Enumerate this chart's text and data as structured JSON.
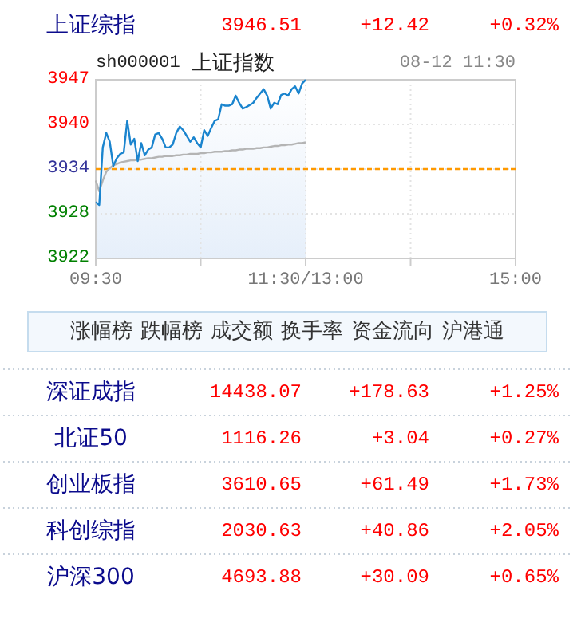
{
  "chart_data": [
    {
      "type": "other",
      "categories": [
        "上证综指"
      ],
      "cell_labels": [
        [
          "3946.51",
          "+12.42",
          "+0.32%"
        ]
      ]
    },
    {
      "type": "area",
      "title": "上证指数",
      "subtitle": "sh000001",
      "annotations": [
        "08-12 11:30"
      ],
      "categories": [
        "09:30",
        null,
        null,
        null,
        null,
        null,
        null,
        null,
        null,
        null,
        null,
        null,
        null,
        null,
        null,
        null,
        null,
        null,
        null,
        null,
        null,
        null,
        null,
        null,
        null,
        null,
        null,
        null,
        null,
        null,
        null,
        null,
        null,
        null,
        null,
        null,
        null,
        null,
        null,
        null,
        null,
        null,
        null,
        null,
        null,
        null,
        null,
        null,
        null,
        null,
        null,
        null,
        null,
        null,
        null,
        null,
        null,
        null,
        null,
        null,
        "11:30/13:00",
        null,
        null,
        null,
        null,
        null,
        null,
        null,
        null,
        null,
        null,
        null,
        null,
        null,
        null,
        null,
        null,
        null,
        null,
        null,
        null,
        null,
        null,
        null,
        null,
        null,
        null,
        null,
        null,
        null,
        null,
        null,
        null,
        null,
        null,
        null,
        null,
        null,
        null,
        null,
        null,
        null,
        null,
        null,
        null,
        null,
        null,
        null,
        null,
        null,
        null,
        null,
        null,
        null,
        null,
        null,
        null,
        null,
        null,
        null,
        "15:00"
      ],
      "ylim": [
        3921.67,
        3946.51
      ],
      "yticks": [
        {
          "value": 3921.67,
          "label": "3922"
        },
        {
          "value": 3927.88,
          "label": "3928"
        },
        {
          "value": 3934.09,
          "label": "3934"
        },
        {
          "value": 3940.3,
          "label": "3940"
        },
        {
          "value": 3946.51,
          "label": "3947"
        }
      ],
      "grid": true,
      "ref_lines": [
        {
          "axis": "y",
          "value": 3934.09,
          "color": "#ff9900",
          "line_style": "dashed"
        }
      ],
      "series": [
        {
          "type": "area",
          "color": "#1a84ce",
          "values": [
            3929.5,
            3929.1,
            3937.1,
            3939.1,
            3937.9,
            3934.5,
            3935.6,
            3936.2,
            3936.4,
            3940.8,
            3937.5,
            3938.3,
            3935.2,
            3937.7,
            3936.0,
            3936.8,
            3937.1,
            3938.9,
            3939.1,
            3938.3,
            3937.1,
            3937.1,
            3937.5,
            3939.1,
            3940.0,
            3939.5,
            3938.7,
            3937.9,
            3938.5,
            3937.7,
            3937.1,
            3939.5,
            3938.7,
            3939.8,
            3940.8,
            3941.0,
            3943.1,
            3942.9,
            3942.9,
            3943.1,
            3944.3,
            3943.3,
            3942.5,
            3942.7,
            3943.0,
            3943.3,
            3944.0,
            3944.6,
            3945.2,
            3944.3,
            3942.5,
            3943.3,
            3943.1,
            3944.4,
            3944.6,
            3944.3,
            3945.2,
            3945.6,
            3944.6,
            3946.0,
            3946.5,
            null,
            null,
            null,
            null,
            null,
            null,
            null,
            null,
            null,
            null,
            null,
            null,
            null,
            null,
            null,
            null,
            null,
            null,
            null,
            null,
            null,
            null,
            null,
            null,
            null,
            null,
            null,
            null,
            null,
            null,
            null,
            null,
            null,
            null,
            null,
            null,
            null,
            null,
            null,
            null,
            null,
            null,
            null,
            null,
            null,
            null,
            null,
            null,
            null,
            null,
            null,
            null,
            null,
            null,
            null,
            null,
            null,
            null,
            null,
            null
          ]
        },
        {
          "type": "line",
          "color": "#b4b4b4",
          "values": [
            3932.5,
            3931.0,
            3932.5,
            3933.7,
            3934.2,
            3934.6,
            3934.8,
            3935.0,
            3935.1,
            3935.2,
            3935.3,
            3935.3,
            3935.4,
            3935.4,
            3935.5,
            3935.6,
            3935.6,
            3935.7,
            3935.8,
            3935.8,
            3935.9,
            3935.9,
            3935.9,
            3936.0,
            3936.0,
            3936.1,
            3936.1,
            3936.2,
            3936.2,
            3936.2,
            3936.3,
            3936.3,
            3936.4,
            3936.4,
            3936.5,
            3936.5,
            3936.5,
            3936.6,
            3936.6,
            3936.7,
            3936.7,
            3936.8,
            3936.8,
            3936.9,
            3936.9,
            3936.9,
            3937.0,
            3937.0,
            3937.1,
            3937.1,
            3937.2,
            3937.3,
            3937.3,
            3937.4,
            3937.4,
            3937.5,
            3937.5,
            3937.6,
            3937.7,
            3937.7,
            3937.8,
            null,
            null,
            null,
            null,
            null,
            null,
            null,
            null,
            null,
            null,
            null,
            null,
            null,
            null,
            null,
            null,
            null,
            null,
            null,
            null,
            null,
            null,
            null,
            null,
            null,
            null,
            null,
            null,
            null,
            null,
            null,
            null,
            null,
            null,
            null,
            null,
            null,
            null,
            null,
            null,
            null,
            null,
            null,
            null,
            null,
            null,
            null,
            null,
            null,
            null,
            null,
            null,
            null,
            null,
            null,
            null,
            null,
            null,
            null,
            null
          ]
        }
      ]
    },
    {
      "type": "other",
      "annotations": [
        "涨幅榜",
        "跌幅榜",
        "成交额",
        "换手率",
        "资金流向",
        "沪港通"
      ],
      "categories": [
        "深证成指",
        "北证50",
        "创业板指",
        "科创综指",
        "沪深300"
      ],
      "cell_labels": [
        [
          "14438.07",
          "+178.63",
          "+1.25%"
        ],
        [
          "1116.26",
          "+3.04",
          "+0.27%"
        ],
        [
          "3610.65",
          "+61.49",
          "+1.73%"
        ],
        [
          "2030.63",
          "+40.86",
          "+2.05%"
        ],
        [
          "4693.88",
          "+30.09",
          "+0.65%"
        ]
      ]
    }
  ]
}
